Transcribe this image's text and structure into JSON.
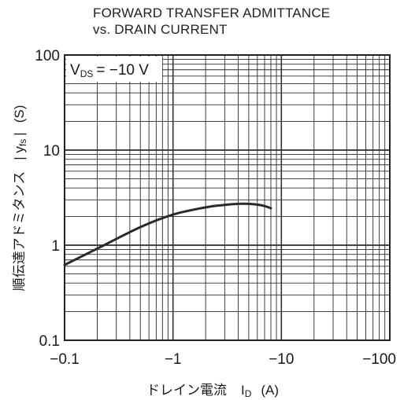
{
  "chart_data": {
    "type": "line",
    "title": [
      "FORWARD TRANSFER ADMITTANCE",
      "vs. DRAIN CURRENT"
    ],
    "condition": {
      "symbol": "V",
      "subscript": "DS",
      "value": "= −10 V"
    },
    "xlabel": {
      "text": "ドレイン電流",
      "symbol": "I",
      "subscript": "D",
      "unit": "(A)"
    },
    "ylabel": {
      "text": "順伝達アドミタンス",
      "symbol": "| y",
      "subscript": "fs",
      "close": "|",
      "unit": "(S)"
    },
    "x_scale": "log",
    "y_scale": "log",
    "x_reversed_sign": true,
    "xlim": [
      0.1,
      100
    ],
    "ylim": [
      0.1,
      100
    ],
    "x_ticks": [
      0.1,
      1,
      10,
      100
    ],
    "x_tick_labels": [
      "−0.1",
      "−1",
      "−10",
      "−100"
    ],
    "y_ticks": [
      0.1,
      1,
      10,
      100
    ],
    "y_tick_labels": [
      "0.1",
      "1",
      "10",
      "100"
    ],
    "grid": true,
    "series": [
      {
        "color": "#2a2a2a",
        "x": [
          0.1,
          0.2,
          0.5,
          1,
          2,
          3,
          4,
          5,
          6,
          7,
          8
        ],
        "y": [
          0.62,
          0.92,
          1.55,
          2.1,
          2.5,
          2.65,
          2.72,
          2.72,
          2.67,
          2.58,
          2.45
        ]
      }
    ]
  }
}
